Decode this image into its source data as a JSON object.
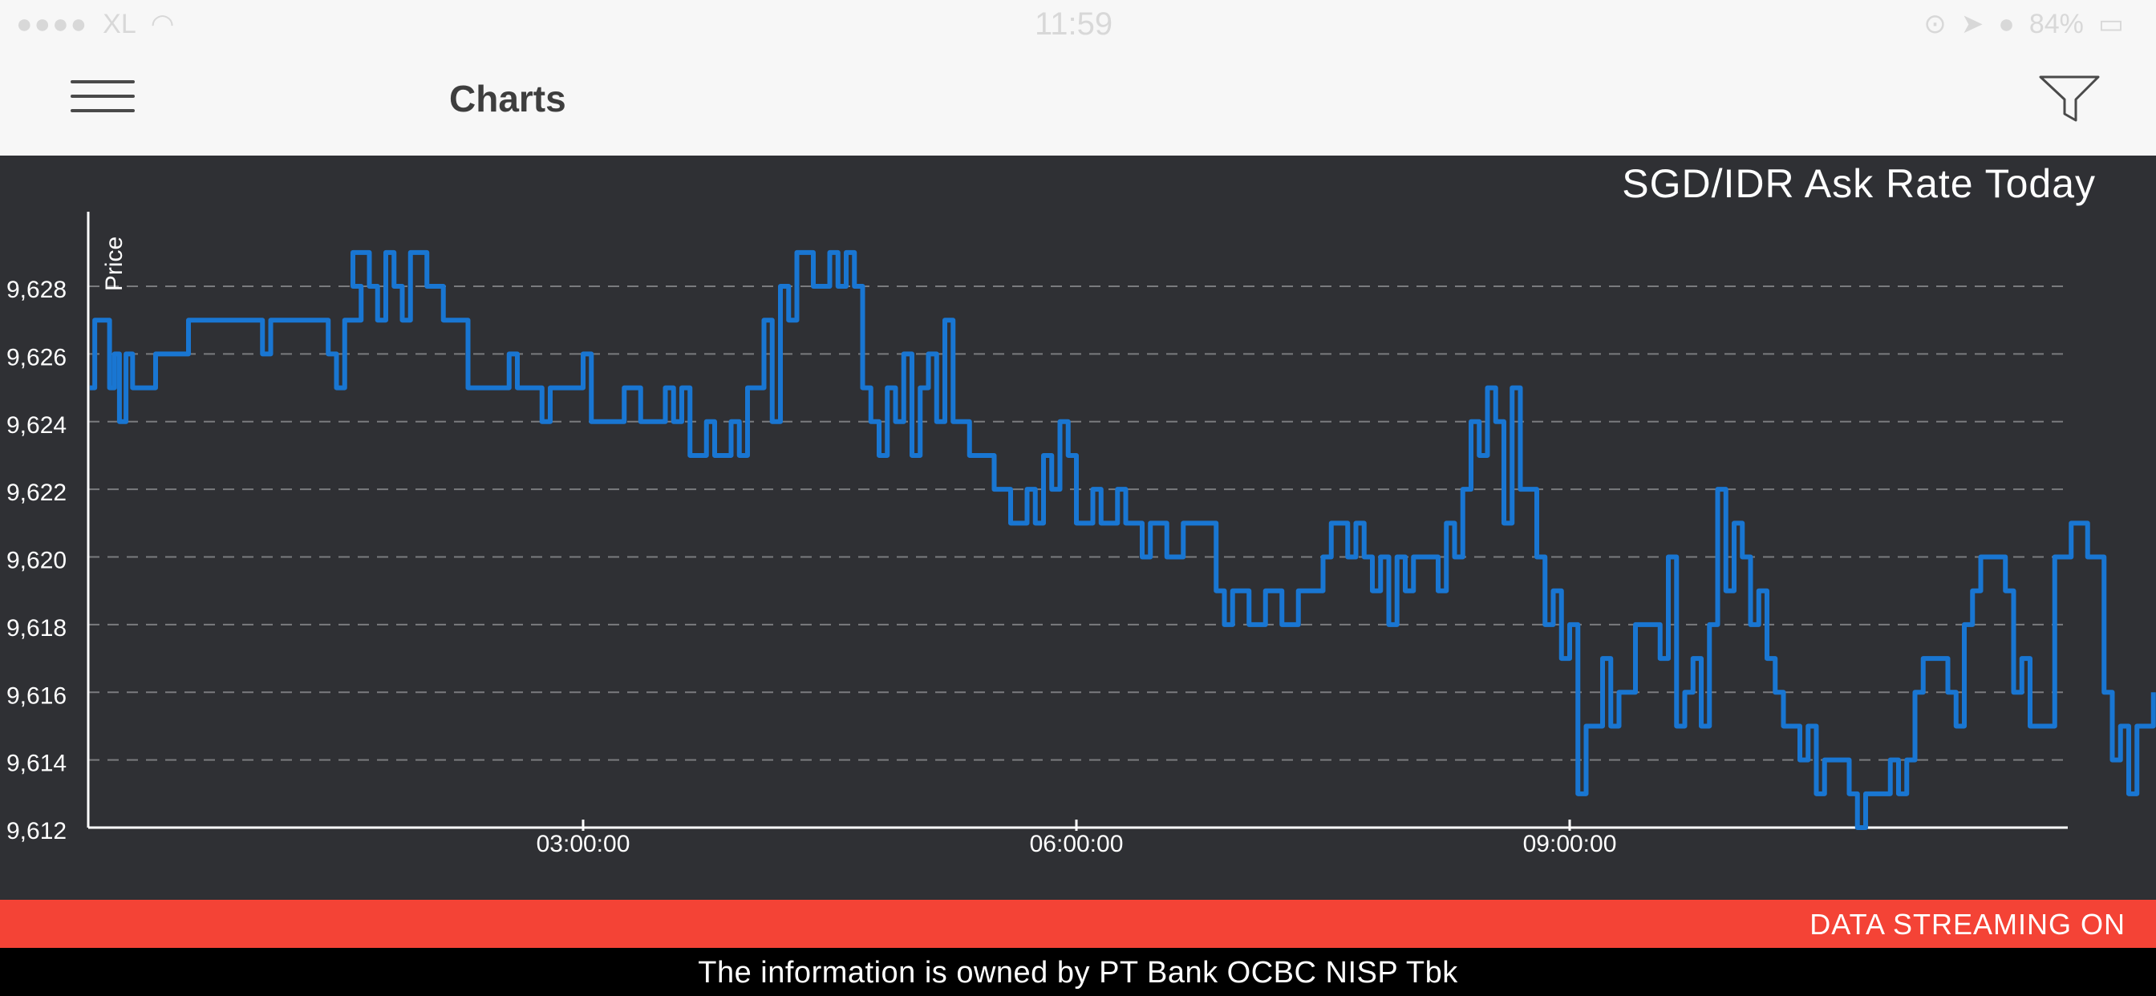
{
  "status_bar": {
    "carrier": "XL",
    "time": "11:59",
    "battery": "84%"
  },
  "header": {
    "title": "Charts",
    "menu_icon": "hamburger-menu-icon",
    "filter_icon": "filter-funnel-icon"
  },
  "chart_title": "SGD/IDR Ask Rate Today",
  "chart_data": {
    "type": "line",
    "title": "SGD/IDR Ask Rate Today",
    "ylabel": "Price",
    "xlabel": "",
    "ylim": [
      9612,
      9629
    ],
    "y_ticks": [
      "9,612",
      "9,614",
      "9,616",
      "9,618",
      "9,620",
      "9,622",
      "9,624",
      "9,626",
      "9,628"
    ],
    "y_tick_values": [
      9612,
      9614,
      9616,
      9618,
      9620,
      9622,
      9624,
      9626,
      9628
    ],
    "x_ticks": [
      "03:00:00",
      "06:00:00",
      "09:00:00"
    ],
    "x_tick_values": [
      3,
      6,
      9
    ],
    "xlim": [
      0,
      12
    ],
    "grid": "dashed horizontal",
    "line_color": "#1976d2",
    "series": [
      {
        "values": [
          [
            0.0,
            9625
          ],
          [
            0.03,
            9627
          ],
          [
            0.1,
            9627
          ],
          [
            0.12,
            9625
          ],
          [
            0.15,
            9626
          ],
          [
            0.18,
            9624
          ],
          [
            0.22,
            9626
          ],
          [
            0.26,
            9625
          ],
          [
            0.35,
            9625
          ],
          [
            0.4,
            9626
          ],
          [
            0.5,
            9626
          ],
          [
            0.6,
            9627
          ],
          [
            1.0,
            9627
          ],
          [
            1.05,
            9626
          ],
          [
            1.1,
            9627
          ],
          [
            1.4,
            9627
          ],
          [
            1.45,
            9626
          ],
          [
            1.5,
            9625
          ],
          [
            1.55,
            9627
          ],
          [
            1.62,
            9627
          ],
          [
            1.65,
            9628
          ],
          [
            1.6,
            9629
          ],
          [
            1.7,
            9628
          ],
          [
            1.75,
            9627
          ],
          [
            1.8,
            9629
          ],
          [
            1.85,
            9628
          ],
          [
            1.9,
            9627
          ],
          [
            1.95,
            9629
          ],
          [
            2.05,
            9628
          ],
          [
            2.15,
            9627
          ],
          [
            2.25,
            9627
          ],
          [
            2.3,
            9625
          ],
          [
            2.5,
            9625
          ],
          [
            2.55,
            9626
          ],
          [
            2.6,
            9625
          ],
          [
            2.7,
            9625
          ],
          [
            2.75,
            9624
          ],
          [
            2.8,
            9625
          ],
          [
            2.95,
            9625
          ],
          [
            3.0,
            9626
          ],
          [
            3.05,
            9624
          ],
          [
            3.2,
            9624
          ],
          [
            3.25,
            9625
          ],
          [
            3.35,
            9624
          ],
          [
            3.45,
            9624
          ],
          [
            3.5,
            9625
          ],
          [
            3.55,
            9624
          ],
          [
            3.6,
            9625
          ],
          [
            3.65,
            9623
          ],
          [
            3.75,
            9624
          ],
          [
            3.8,
            9623
          ],
          [
            3.9,
            9624
          ],
          [
            3.95,
            9623
          ],
          [
            4.0,
            9625
          ],
          [
            4.05,
            9625
          ],
          [
            4.1,
            9627
          ],
          [
            4.15,
            9624
          ],
          [
            4.2,
            9628
          ],
          [
            4.25,
            9627
          ],
          [
            4.3,
            9629
          ],
          [
            4.4,
            9628
          ],
          [
            4.5,
            9629
          ],
          [
            4.55,
            9628
          ],
          [
            4.6,
            9629
          ],
          [
            4.65,
            9628
          ],
          [
            4.7,
            9625
          ],
          [
            4.75,
            9624
          ],
          [
            4.8,
            9623
          ],
          [
            4.85,
            9625
          ],
          [
            4.9,
            9624
          ],
          [
            4.95,
            9626
          ],
          [
            5.0,
            9623
          ],
          [
            5.05,
            9625
          ],
          [
            5.1,
            9626
          ],
          [
            5.15,
            9624
          ],
          [
            5.2,
            9627
          ],
          [
            5.25,
            9624
          ],
          [
            5.35,
            9623
          ],
          [
            5.45,
            9623
          ],
          [
            5.5,
            9622
          ],
          [
            5.6,
            9621
          ],
          [
            5.7,
            9622
          ],
          [
            5.75,
            9621
          ],
          [
            5.8,
            9623
          ],
          [
            5.85,
            9622
          ],
          [
            5.9,
            9624
          ],
          [
            5.95,
            9623
          ],
          [
            6.0,
            9621
          ],
          [
            6.1,
            9622
          ],
          [
            6.15,
            9621
          ],
          [
            6.25,
            9622
          ],
          [
            6.3,
            9621
          ],
          [
            6.4,
            9620
          ],
          [
            6.45,
            9621
          ],
          [
            6.55,
            9620
          ],
          [
            6.65,
            9621
          ],
          [
            6.8,
            9621
          ],
          [
            6.85,
            9619
          ],
          [
            6.9,
            9618
          ],
          [
            6.95,
            9619
          ],
          [
            7.05,
            9618
          ],
          [
            7.15,
            9619
          ],
          [
            7.25,
            9618
          ],
          [
            7.35,
            9619
          ],
          [
            7.45,
            9619
          ],
          [
            7.5,
            9620
          ],
          [
            7.55,
            9621
          ],
          [
            7.65,
            9620
          ],
          [
            7.7,
            9621
          ],
          [
            7.75,
            9620
          ],
          [
            7.8,
            9619
          ],
          [
            7.85,
            9620
          ],
          [
            7.9,
            9618
          ],
          [
            7.95,
            9620
          ],
          [
            8.0,
            9619
          ],
          [
            8.05,
            9620
          ],
          [
            8.15,
            9620
          ],
          [
            8.2,
            9619
          ],
          [
            8.25,
            9621
          ],
          [
            8.3,
            9620
          ],
          [
            8.35,
            9622
          ],
          [
            8.4,
            9624
          ],
          [
            8.45,
            9623
          ],
          [
            8.5,
            9625
          ],
          [
            8.55,
            9624
          ],
          [
            8.6,
            9621
          ],
          [
            8.65,
            9625
          ],
          [
            8.7,
            9622
          ],
          [
            8.8,
            9620
          ],
          [
            8.85,
            9618
          ],
          [
            8.9,
            9619
          ],
          [
            8.95,
            9617
          ],
          [
            9.0,
            9618
          ],
          [
            9.05,
            9613
          ],
          [
            9.1,
            9615
          ],
          [
            9.2,
            9617
          ],
          [
            9.25,
            9615
          ],
          [
            9.3,
            9616
          ],
          [
            9.4,
            9618
          ],
          [
            9.5,
            9618
          ],
          [
            9.55,
            9617
          ],
          [
            9.6,
            9620
          ],
          [
            9.65,
            9615
          ],
          [
            9.7,
            9616
          ],
          [
            9.75,
            9617
          ],
          [
            9.8,
            9615
          ],
          [
            9.85,
            9618
          ],
          [
            9.9,
            9622
          ],
          [
            9.95,
            9619
          ],
          [
            10.0,
            9621
          ],
          [
            10.05,
            9620
          ],
          [
            10.1,
            9618
          ],
          [
            10.15,
            9619
          ],
          [
            10.2,
            9617
          ],
          [
            10.25,
            9616
          ],
          [
            10.3,
            9615
          ],
          [
            10.4,
            9614
          ],
          [
            10.45,
            9615
          ],
          [
            10.5,
            9613
          ],
          [
            10.55,
            9614
          ],
          [
            10.65,
            9614
          ],
          [
            10.7,
            9613
          ],
          [
            10.75,
            9612
          ],
          [
            10.8,
            9613
          ],
          [
            10.9,
            9613
          ],
          [
            10.95,
            9614
          ],
          [
            11.0,
            9613
          ],
          [
            11.05,
            9614
          ],
          [
            11.1,
            9616
          ],
          [
            11.15,
            9617
          ],
          [
            11.25,
            9617
          ],
          [
            11.3,
            9616
          ],
          [
            11.35,
            9615
          ],
          [
            11.4,
            9618
          ],
          [
            11.45,
            9619
          ],
          [
            11.5,
            9620
          ],
          [
            11.6,
            9620
          ],
          [
            11.65,
            9619
          ],
          [
            11.7,
            9616
          ],
          [
            11.75,
            9617
          ],
          [
            11.8,
            9615
          ],
          [
            11.9,
            9615
          ],
          [
            11.95,
            9620
          ],
          [
            12.0,
            9620
          ],
          [
            12.05,
            9621
          ],
          [
            12.15,
            9620
          ],
          [
            12.2,
            9620
          ],
          [
            12.25,
            9616
          ],
          [
            12.3,
            9614
          ],
          [
            12.35,
            9615
          ],
          [
            12.4,
            9613
          ],
          [
            12.45,
            9615
          ],
          [
            12.55,
            9616
          ]
        ]
      }
    ]
  },
  "streaming_label": "DATA STREAMING ON",
  "footer_text": "The information is owned by PT Bank OCBC NISP Tbk"
}
